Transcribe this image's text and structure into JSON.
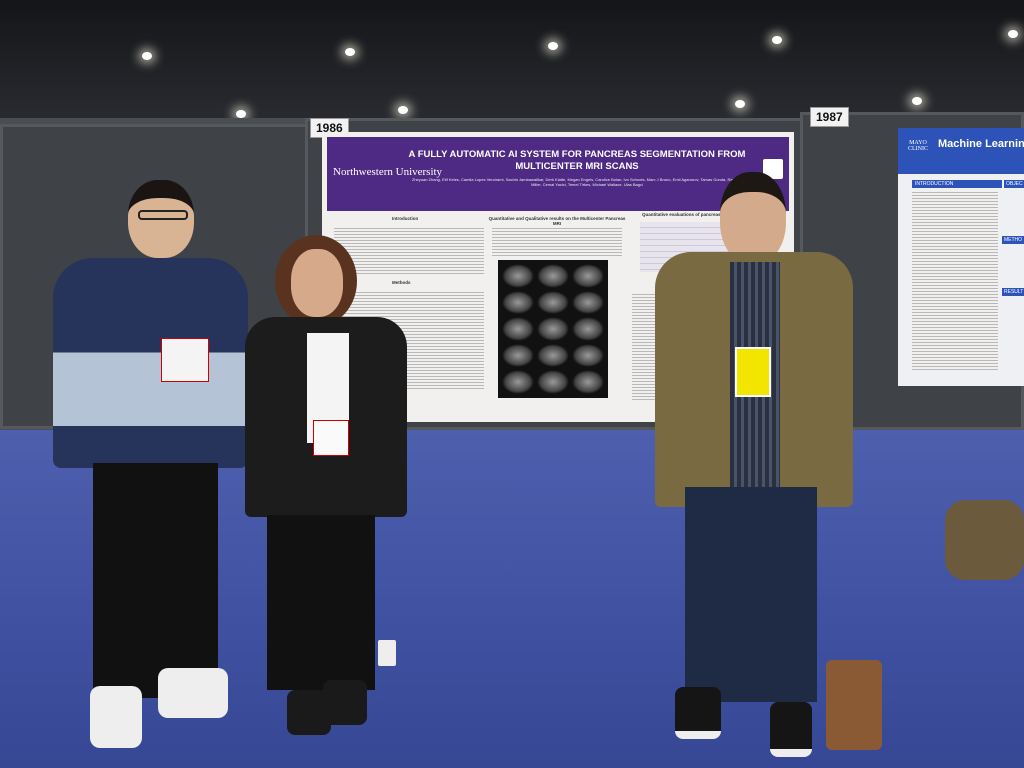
{
  "scene": {
    "setting": "Conference poster hall",
    "carpet_color": "#4254a4",
    "ceiling_color": "#1b1d22"
  },
  "booth_numbers": [
    "1986",
    "1987"
  ],
  "poster": {
    "title": "A FULLY AUTOMATIC AI SYSTEM FOR PANCREAS SEGMENTATION FROM MULTICENTER MRI SCANS",
    "institution": "Northwestern University",
    "authors": "Zheyuan Zhang, Elif Keles, Camila Lopes Vendrami, Sachin Jambawalikar, Derk Klatte, Megan Engels, Candice Bolan, Ivo Schoots, Marc J Bruno, Emil Agarunov, Tamas Gonda, Raj Keswani, Frank Miller, Cemal Yazici, Temel Tirkes, Michael Wallace, Ulas Bagci",
    "sections": [
      "Introduction",
      "Quantitative and Qualitative results on the Multicenter Pancreas MRI",
      "Quantitative evaluations of pancreas",
      "Methods"
    ],
    "header_color": "#4e2a84"
  },
  "poster2": {
    "logo": "MAYO CLINIC",
    "title": "Machine Learning",
    "sections": [
      "INTRODUCTION",
      "OBJEC",
      "METHO",
      "RESULT"
    ],
    "header_color": "#2e53b8"
  }
}
